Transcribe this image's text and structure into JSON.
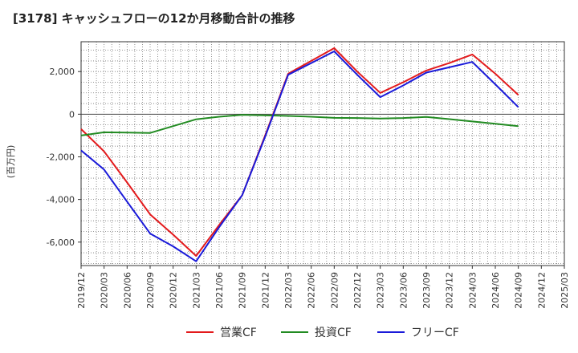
{
  "chart_data": {
    "type": "line",
    "title": "[3178]  キャッシュフローの12か月移動合計の推移",
    "ylabel": "(百万円)",
    "xlabel": "",
    "x": [
      "2019/12",
      "2020/03",
      "2020/06",
      "2020/09",
      "2020/12",
      "2021/03",
      "2021/06",
      "2021/09",
      "2021/12",
      "2022/03",
      "2022/06",
      "2022/09",
      "2022/12",
      "2023/03",
      "2023/06",
      "2023/09",
      "2023/12",
      "2024/03",
      "2024/06",
      "2024/09",
      "2024/12",
      "2025/03"
    ],
    "ylim": [
      -7100,
      3400
    ],
    "yticks": [
      -6000,
      -4000,
      -2000,
      0,
      2000
    ],
    "ytick_labels": [
      "-6,000",
      "-4,000",
      "-2,000",
      "0",
      "2,000"
    ],
    "grid": true,
    "legend_position": "bottom-center",
    "series": [
      {
        "name": "営業CF",
        "color": "#e31a1c",
        "values": [
          -700,
          -1750,
          -3200,
          -4700,
          -5650,
          -6650,
          -5200,
          -3800,
          -1000,
          1900,
          2500,
          3100,
          2000,
          1000,
          1500,
          2050,
          2400,
          2800,
          1900,
          900,
          null,
          null
        ]
      },
      {
        "name": "投資CF",
        "color": "#228b22",
        "values": [
          -1000,
          -850,
          -860,
          -880,
          -560,
          -240,
          -120,
          -30,
          -50,
          -80,
          -120,
          -170,
          -180,
          -200,
          -180,
          -130,
          -230,
          -340,
          -450,
          -560,
          null,
          null
        ]
      },
      {
        "name": "フリーCF",
        "color": "#1a1ad9",
        "values": [
          -1700,
          -2600,
          -4100,
          -5600,
          -6200,
          -6900,
          -5300,
          -3800,
          -1050,
          1850,
          2400,
          2950,
          1850,
          800,
          1350,
          1950,
          2200,
          2450,
          1400,
          330,
          null,
          null
        ]
      }
    ]
  }
}
